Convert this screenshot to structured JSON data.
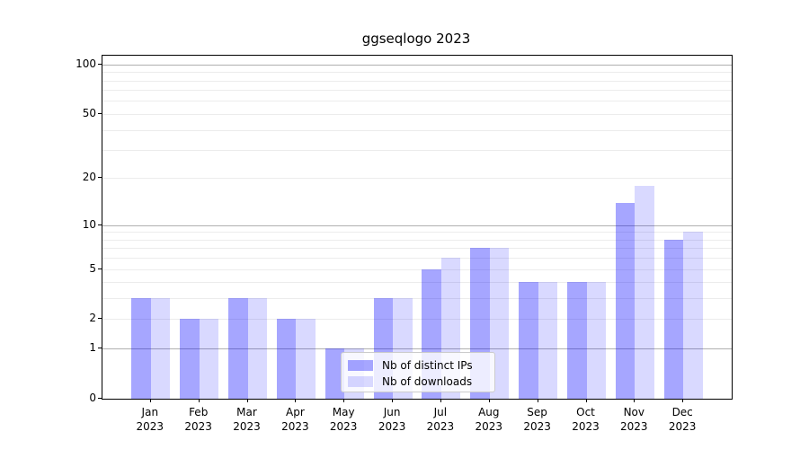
{
  "chart_data": {
    "type": "bar",
    "title": "ggseqlogo 2023",
    "categories": [
      "Jan",
      "Feb",
      "Mar",
      "Apr",
      "May",
      "Jun",
      "Jul",
      "Aug",
      "Sep",
      "Oct",
      "Nov",
      "Dec"
    ],
    "category_year": "2023",
    "series": [
      {
        "name": "Nb of distinct IPs",
        "color": "rgba(0,0,255,0.35)",
        "values": [
          3,
          2,
          3,
          2,
          1,
          3,
          5,
          7,
          4,
          4,
          14,
          8
        ]
      },
      {
        "name": "Nb of downloads",
        "color": "rgba(0,0,255,0.15)",
        "values": [
          3,
          2,
          3,
          2,
          1,
          3,
          6,
          7,
          4,
          4,
          18,
          9
        ]
      }
    ],
    "y_ticks": [
      0,
      1,
      2,
      5,
      10,
      20,
      50,
      100
    ],
    "y_scale": "log10(1+x)",
    "ylim": [
      0,
      113
    ],
    "grid": {
      "major": [
        1,
        10,
        100
      ],
      "minor": [
        2,
        3,
        4,
        5,
        6,
        7,
        8,
        9,
        20,
        30,
        40,
        50,
        60,
        70,
        80,
        90
      ],
      "major_color": "#b0b0b0",
      "minor_color": "#ececec"
    },
    "legend": {
      "position": "inside-lower-left-of-center"
    },
    "xlabel": "",
    "ylabel": ""
  }
}
